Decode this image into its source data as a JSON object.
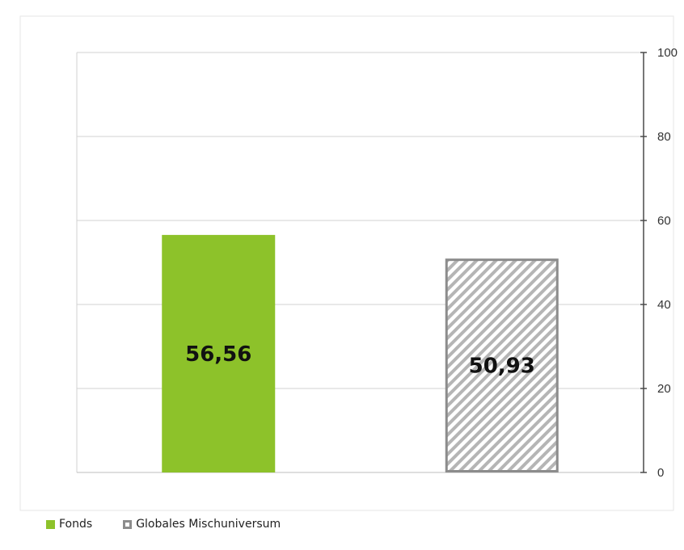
{
  "chart_data": {
    "type": "bar",
    "categories": [
      "Fonds",
      "Globales Mischuniversum"
    ],
    "values": [
      56.56,
      50.93
    ],
    "data_labels": [
      "56,56",
      "50,93"
    ],
    "ylim": [
      0,
      100
    ],
    "yticks": [
      0,
      20,
      40,
      60,
      80,
      100
    ],
    "y_axis_side": "right",
    "grid": true,
    "legend": "bottom-left",
    "series": [
      {
        "name": "Fonds",
        "value": 56.56,
        "label": "56,56",
        "color": "#8dc22a",
        "fill": "solid"
      },
      {
        "name": "Globales Mischuniversum",
        "value": 50.93,
        "label": "50,93",
        "color": "#8c8c8c",
        "fill": "hatched"
      }
    ]
  }
}
